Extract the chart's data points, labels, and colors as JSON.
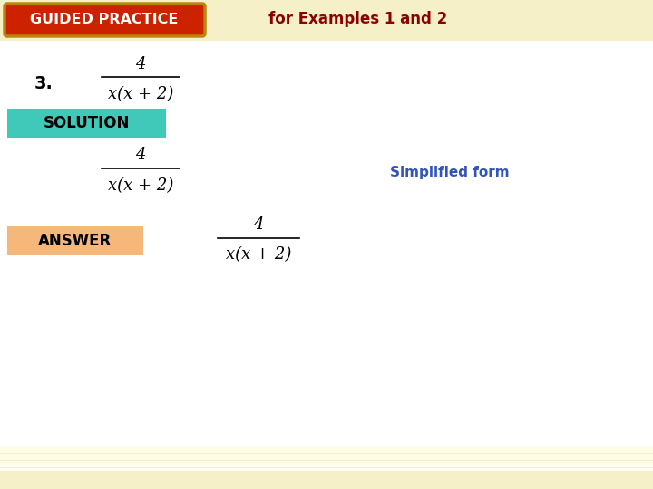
{
  "bg_color": "#fffde8",
  "header_stripe_color": "#f5f0c8",
  "white_bg": "#ffffff",
  "header_bg_red": "#cc2200",
  "header_border": "#b8860b",
  "header_text": "GUIDED PRACTICE",
  "header_text_color": "#ffffff",
  "header_for_text": "for Examples 1 and 2",
  "header_for_color": "#8b0000",
  "number_text": "3.",
  "fraction_numerator": "4",
  "fraction_denominator": "x(x + 2)",
  "solution_bg": "#40c8b8",
  "solution_text": "SOLUTION",
  "solution_text_color": "#000000",
  "simplified_label": "Simplified form",
  "simplified_color": "#3355bb",
  "answer_bg": "#f5b87a",
  "answer_text": "ANSWER",
  "answer_text_color": "#000000",
  "bottom_stripe_color": "#f5f0c8",
  "frac_color": "#000000"
}
